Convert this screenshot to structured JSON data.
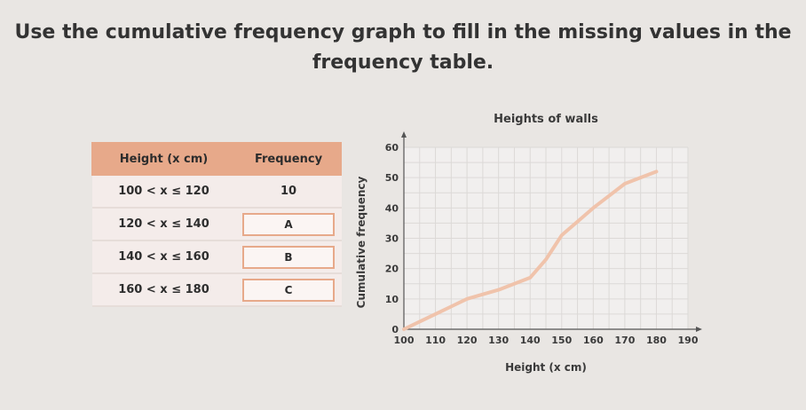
{
  "question": {
    "line1": "Use the cumulative frequency graph to fill in the missing values in the",
    "line2": "frequency table."
  },
  "table": {
    "headers": [
      "Height (x cm)",
      "Frequency"
    ],
    "rows": [
      {
        "height": "100 < x ≤ 120",
        "frequency": "10",
        "is_input": false
      },
      {
        "height": "120 < x ≤ 140",
        "frequency": "A",
        "is_input": true
      },
      {
        "height": "140 < x ≤ 160",
        "frequency": "B",
        "is_input": true
      },
      {
        "height": "160 < x ≤ 180",
        "frequency": "C",
        "is_input": true
      }
    ]
  },
  "chart_data": {
    "type": "line",
    "title": "Heights of walls",
    "xlabel": "Height (x cm)",
    "ylabel": "Cumulative frequency",
    "x_ticks": [
      100,
      110,
      120,
      130,
      140,
      150,
      160,
      170,
      180,
      190
    ],
    "y_ticks": [
      0,
      10,
      20,
      30,
      40,
      50,
      60
    ],
    "xlim": [
      100,
      190
    ],
    "ylim": [
      0,
      60
    ],
    "grid": true,
    "series": [
      {
        "color": "#f0c3ab",
        "x": [
          100,
          110,
          120,
          130,
          140,
          145,
          150,
          160,
          170,
          180
        ],
        "y": [
          0,
          5,
          10,
          13,
          17,
          23,
          31,
          40,
          48,
          52
        ]
      }
    ]
  },
  "colors": {
    "accent": "#e7a98a",
    "background": "#e9e6e3"
  }
}
